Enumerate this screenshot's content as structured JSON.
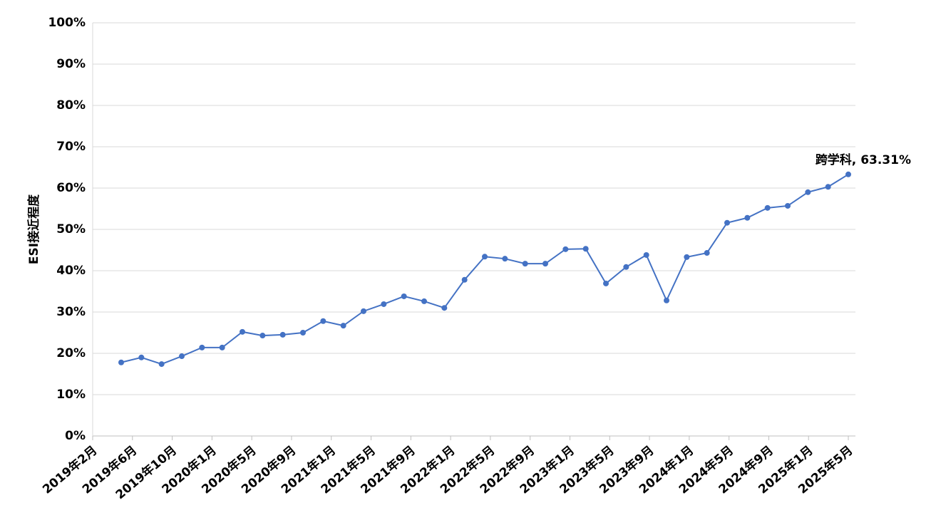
{
  "chart_data": {
    "type": "line",
    "y_label": "ESI接近程度",
    "annotation": "跨学科, 63.31%",
    "x_tick_labels": [
      "2019年2月",
      "2019年6月",
      "2019年10月",
      "2020年1月",
      "2020年5月",
      "2020年9月",
      "2021年1月",
      "2021年5月",
      "2021年9月",
      "2022年1月",
      "2022年5月",
      "2022年9月",
      "2023年1月",
      "2023年5月",
      "2023年9月",
      "2024年1月",
      "2024年5月",
      "2024年9月",
      "2025年1月",
      "2025年5月"
    ],
    "series": [
      {
        "name": "跨学科",
        "color": "#4472c4",
        "values": [
          17.8,
          19.0,
          17.4,
          19.3,
          21.4,
          21.4,
          25.2,
          24.3,
          24.5,
          25.0,
          27.8,
          26.7,
          30.2,
          31.9,
          33.8,
          32.6,
          31.0,
          37.8,
          43.4,
          42.9,
          41.7,
          41.7,
          45.2,
          45.3,
          36.9,
          40.9,
          43.8,
          32.8,
          43.3,
          44.3,
          51.6,
          52.8,
          55.2,
          55.7,
          59.0,
          60.3,
          63.31
        ]
      }
    ],
    "ylim": [
      0,
      100
    ],
    "yticks": [
      {
        "value": 0,
        "label": "0%"
      },
      {
        "value": 10,
        "label": "10%"
      },
      {
        "value": 20,
        "label": "20%"
      },
      {
        "value": 30,
        "label": "30%"
      },
      {
        "value": 40,
        "label": "40%"
      },
      {
        "value": 50,
        "label": "50%"
      },
      {
        "value": 60,
        "label": "60%"
      },
      {
        "value": 70,
        "label": "70%"
      },
      {
        "value": 80,
        "label": "80%"
      },
      {
        "value": 90,
        "label": "90%"
      },
      {
        "value": 100,
        "label": "100%"
      }
    ],
    "grid": true
  }
}
